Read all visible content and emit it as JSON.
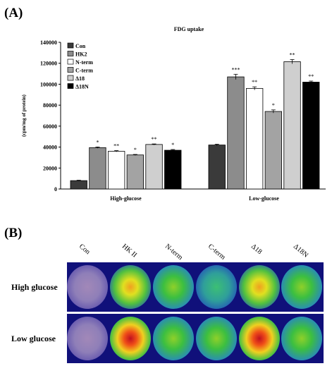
{
  "panel_a_label": "(A)",
  "panel_b_label": "(B)",
  "chart_data": {
    "type": "bar",
    "title": "FDG uptake",
    "ylabel": "(cpm/mg of protein)",
    "xlabel": "",
    "ylim": [
      0,
      140000
    ],
    "yticks": [
      0,
      20000,
      40000,
      60000,
      80000,
      100000,
      120000,
      140000
    ],
    "groups": [
      "High-glucose",
      "Low-glucose"
    ],
    "legend_position": "top-left",
    "series": [
      {
        "name": "Con",
        "color": "#3a3a3a",
        "values": [
          8000,
          42000
        ],
        "errors": [
          400,
          800
        ],
        "sig": [
          "",
          ""
        ]
      },
      {
        "name": "HK2",
        "color": "#8c8c8c",
        "values": [
          39500,
          107000
        ],
        "errors": [
          600,
          2500
        ],
        "sig": [
          "*",
          "***"
        ]
      },
      {
        "name": "N-term",
        "color": "#ffffff",
        "values": [
          36000,
          96000
        ],
        "errors": [
          600,
          1500
        ],
        "sig": [
          "**",
          "**"
        ]
      },
      {
        "name": "C-term",
        "color": "#a3a3a3",
        "values": [
          32500,
          74000
        ],
        "errors": [
          500,
          1500
        ],
        "sig": [
          "*",
          "*"
        ]
      },
      {
        "name": "Δ18",
        "color": "#cfcfcf",
        "values": [
          42500,
          121500
        ],
        "errors": [
          500,
          2000
        ],
        "sig": [
          "**",
          "**"
        ]
      },
      {
        "name": "Δ18N",
        "color": "#000000",
        "values": [
          37000,
          102000
        ],
        "errors": [
          700,
          1000
        ],
        "sig": [
          "*",
          "**"
        ]
      }
    ]
  },
  "heatmap": {
    "columns": [
      "Con",
      "HK II",
      "N-term",
      "C-term",
      "Δ18",
      "Δ18N"
    ],
    "rows": [
      {
        "label": "High glucose",
        "intensity": [
          "none",
          "high",
          "medium",
          "low",
          "high",
          "medium"
        ]
      },
      {
        "label": "Low glucose",
        "intensity": [
          "none",
          "very-high",
          "medium",
          "medium",
          "very-high",
          "medium"
        ]
      }
    ]
  }
}
